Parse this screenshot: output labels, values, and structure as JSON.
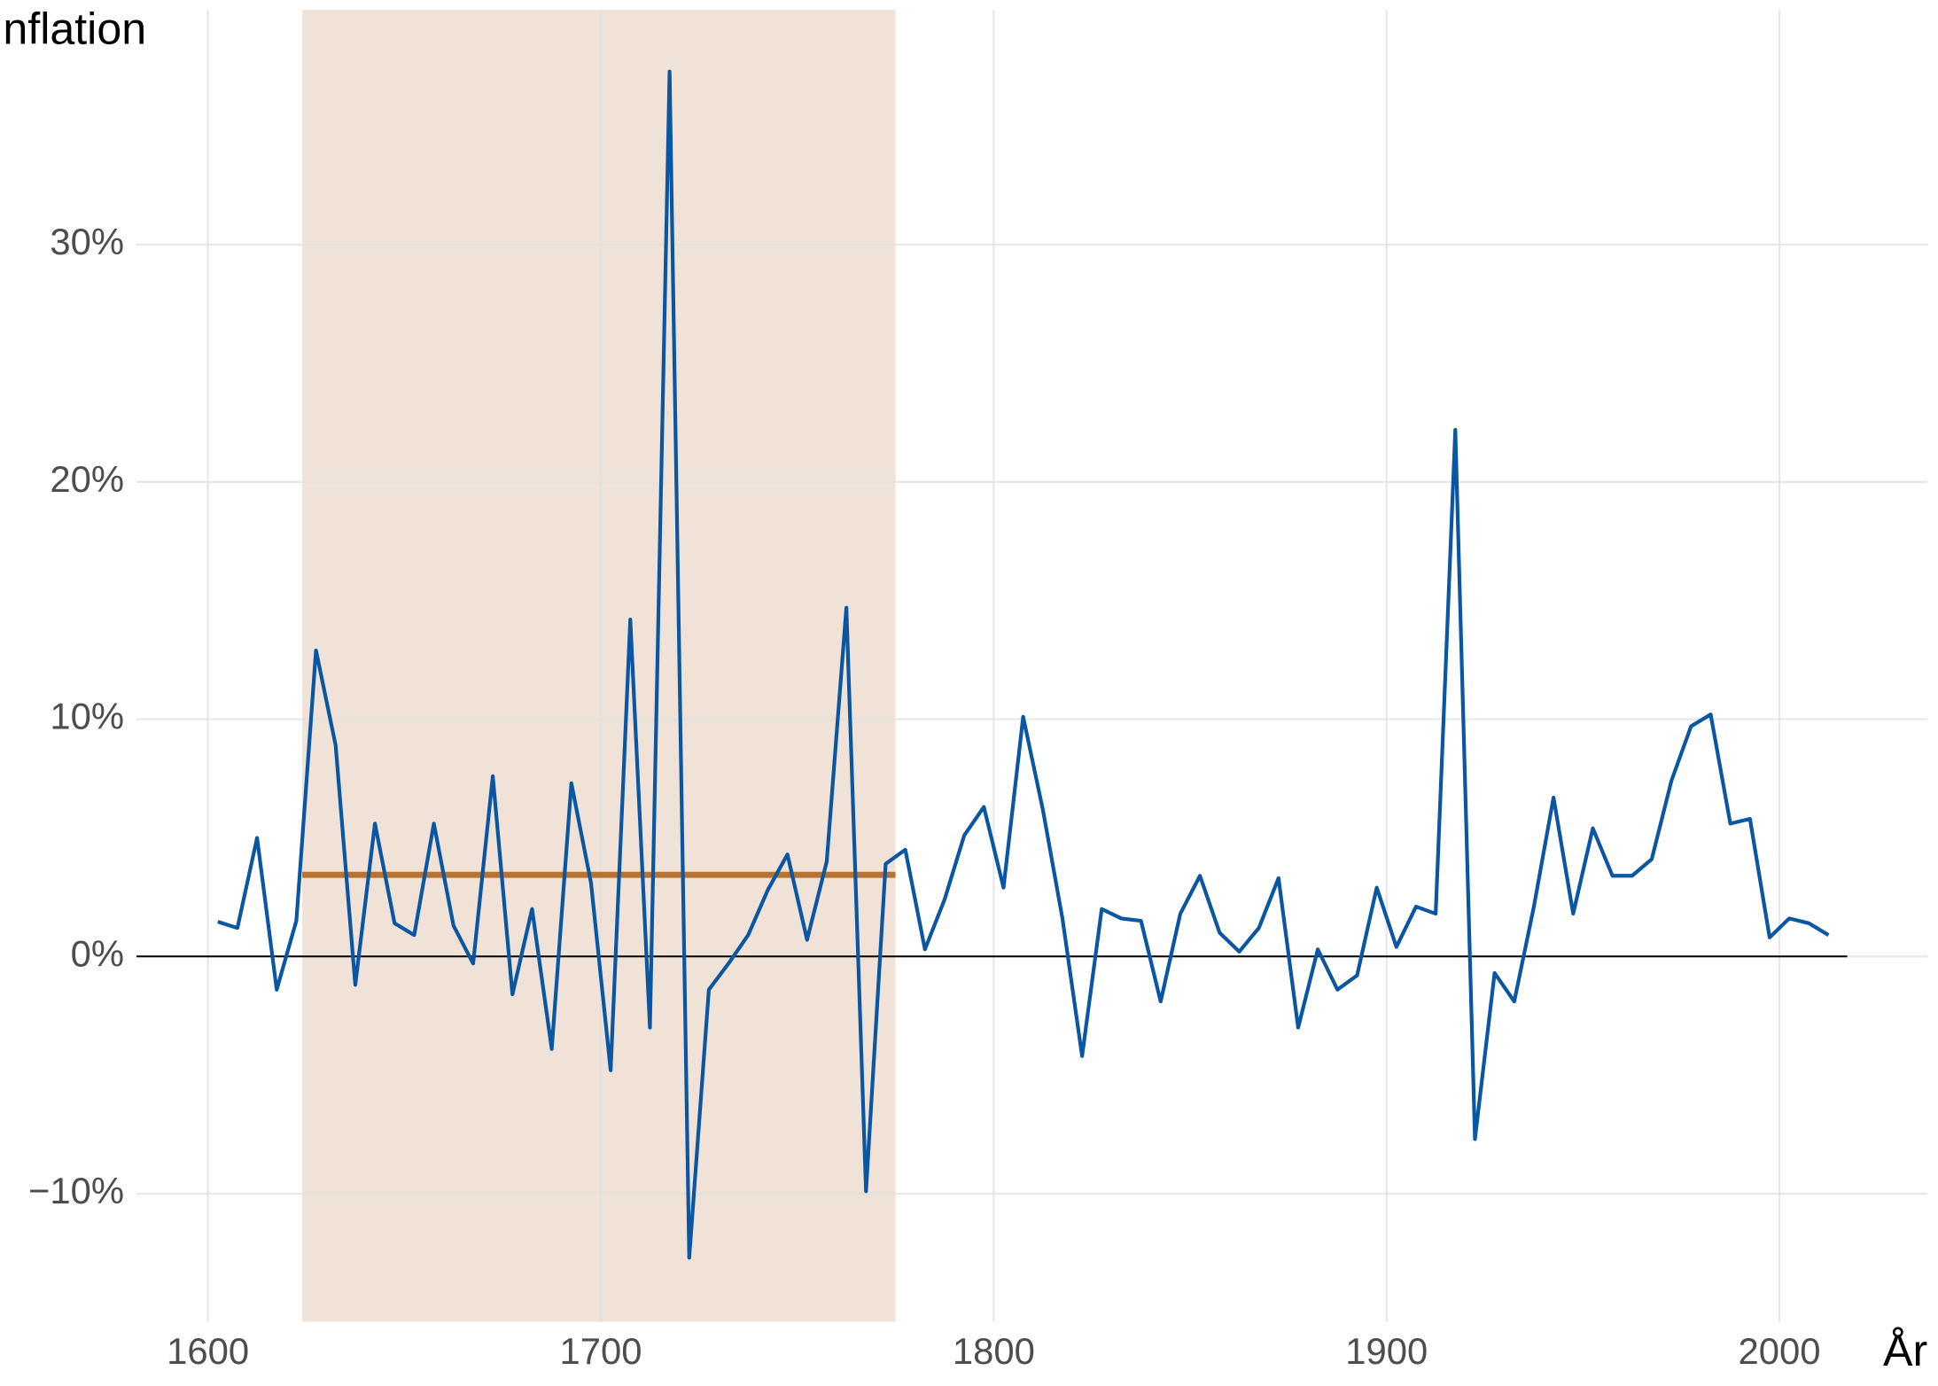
{
  "chart_data": {
    "type": "line",
    "y_label": "Inflation",
    "x_label": "År",
    "x": [
      1602.5,
      1607.5,
      1612.5,
      1617.5,
      1622.5,
      1627.5,
      1632.5,
      1637.5,
      1642.5,
      1647.5,
      1652.5,
      1657.5,
      1662.5,
      1667.5,
      1672.5,
      1677.5,
      1682.5,
      1687.5,
      1692.5,
      1697.5,
      1702.5,
      1707.5,
      1712.5,
      1717.5,
      1722.5,
      1727.5,
      1732.5,
      1737.5,
      1742.5,
      1747.5,
      1752.5,
      1757.5,
      1762.5,
      1767.5,
      1772.5,
      1777.5,
      1782.5,
      1787.5,
      1792.5,
      1797.5,
      1802.5,
      1807.5,
      1812.5,
      1817.5,
      1822.5,
      1827.5,
      1832.5,
      1837.5,
      1842.5,
      1847.5,
      1852.5,
      1857.5,
      1862.5,
      1867.5,
      1872.5,
      1877.5,
      1882.5,
      1887.5,
      1892.5,
      1897.5,
      1902.5,
      1907.5,
      1912.5,
      1917.5,
      1922.5,
      1927.5,
      1932.5,
      1937.5,
      1942.5,
      1947.5,
      1952.5,
      1957.5,
      1962.5,
      1967.5,
      1972.5,
      1977.5,
      1982.5,
      1987.5,
      1992.5,
      1997.5,
      2002.5,
      2007.5,
      2012.5
    ],
    "series": [
      {
        "color": "#0a56a2",
        "values": [
          1.46,
          1.2,
          5.0,
          -1.4,
          1.5,
          12.9,
          8.9,
          -1.2,
          5.6,
          1.4,
          0.9,
          5.6,
          1.3,
          -0.3,
          7.6,
          -1.6,
          2.0,
          -3.9,
          7.3,
          3.1,
          -4.8,
          14.2,
          -3.0,
          37.3,
          -12.7,
          -1.4,
          -0.3,
          0.9,
          2.8,
          4.3,
          0.7,
          4.0,
          14.7,
          -9.9,
          3.9,
          4.5,
          0.3,
          2.4,
          5.1,
          6.3,
          2.9,
          10.1,
          6.2,
          1.6,
          -4.2,
          2.0,
          1.6,
          1.5,
          -1.9,
          1.8,
          3.4,
          1.0,
          0.2,
          1.2,
          3.3,
          -3.0,
          0.3,
          -1.4,
          -0.8,
          2.9,
          0.4,
          2.1,
          1.8,
          22.2,
          -7.7,
          -0.7,
          -1.9,
          2.1,
          6.7,
          1.8,
          5.4,
          3.4,
          3.4,
          4.1,
          7.4,
          9.7,
          10.2,
          5.6,
          5.8,
          0.8,
          1.6,
          1.4,
          0.9
        ]
      }
    ],
    "highlight": {
      "xlim": [
        1624,
        1775
      ],
      "color": "#f0e2d6"
    },
    "mean_line": {
      "value": 3.44,
      "x": [
        1624,
        1775
      ],
      "color": "#b87333"
    },
    "xlim": [
      1581.8,
      2037.7
    ],
    "ylim": [
      -15.4,
      39.9
    ],
    "xticks": [
      1600,
      1700,
      1800,
      1900,
      2000
    ],
    "yticks": [
      {
        "value": -10,
        "label": "−10%"
      },
      {
        "value": 0,
        "label": "0%"
      },
      {
        "value": 10,
        "label": "10%"
      },
      {
        "value": 20,
        "label": "20%"
      },
      {
        "value": 30,
        "label": "30%"
      }
    ],
    "grid": true
  }
}
